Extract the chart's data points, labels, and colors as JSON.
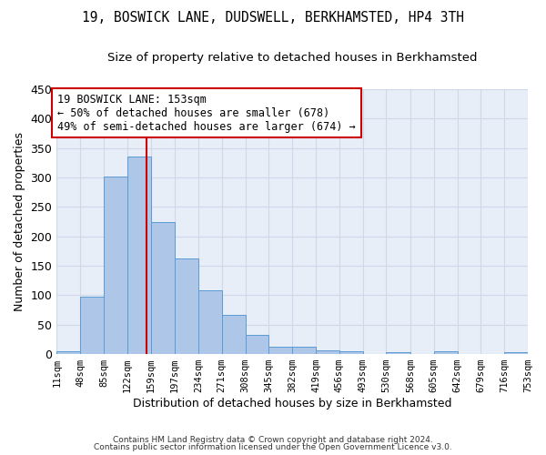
{
  "title": "19, BOSWICK LANE, DUDSWELL, BERKHAMSTED, HP4 3TH",
  "subtitle": "Size of property relative to detached houses in Berkhamsted",
  "xlabel": "Distribution of detached houses by size in Berkhamsted",
  "ylabel": "Number of detached properties",
  "footnote1": "Contains HM Land Registry data © Crown copyright and database right 2024.",
  "footnote2": "Contains public sector information licensed under the Open Government Licence v3.0.",
  "bin_edges": [
    11,
    48,
    85,
    122,
    159,
    197,
    234,
    271,
    308,
    345,
    382,
    419,
    456,
    493,
    530,
    568,
    605,
    642,
    679,
    716,
    753
  ],
  "bar_heights": [
    5,
    97,
    301,
    335,
    225,
    163,
    109,
    67,
    33,
    12,
    12,
    6,
    4,
    0,
    3,
    0,
    4,
    0,
    0,
    3
  ],
  "bar_color": "#aec6e8",
  "bar_edge_color": "#5b9bd5",
  "grid_color": "#d0d8e8",
  "vline_x": 153,
  "vline_color": "#cc0000",
  "annotation_line1": "19 BOSWICK LANE: 153sqm",
  "annotation_line2": "← 50% of detached houses are smaller (678)",
  "annotation_line3": "49% of semi-detached houses are larger (674) →",
  "annotation_box_color": "#ffffff",
  "annotation_box_edge": "#cc0000",
  "ylim": [
    0,
    450
  ],
  "yticks": [
    0,
    50,
    100,
    150,
    200,
    250,
    300,
    350,
    400,
    450
  ],
  "background_color": "#ffffff",
  "title_fontsize": 10.5,
  "subtitle_fontsize": 9.5,
  "tick_label_fontsize": 7.5,
  "ylabel_fontsize": 9,
  "xlabel_fontsize": 9
}
